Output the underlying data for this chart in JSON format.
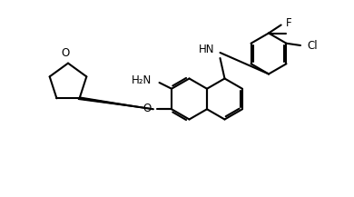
{
  "bg_color": "#ffffff",
  "line_color": "#000000",
  "line_width": 1.5,
  "font_size": 8.5,
  "figsize": [
    3.9,
    2.17
  ],
  "dpi": 100
}
